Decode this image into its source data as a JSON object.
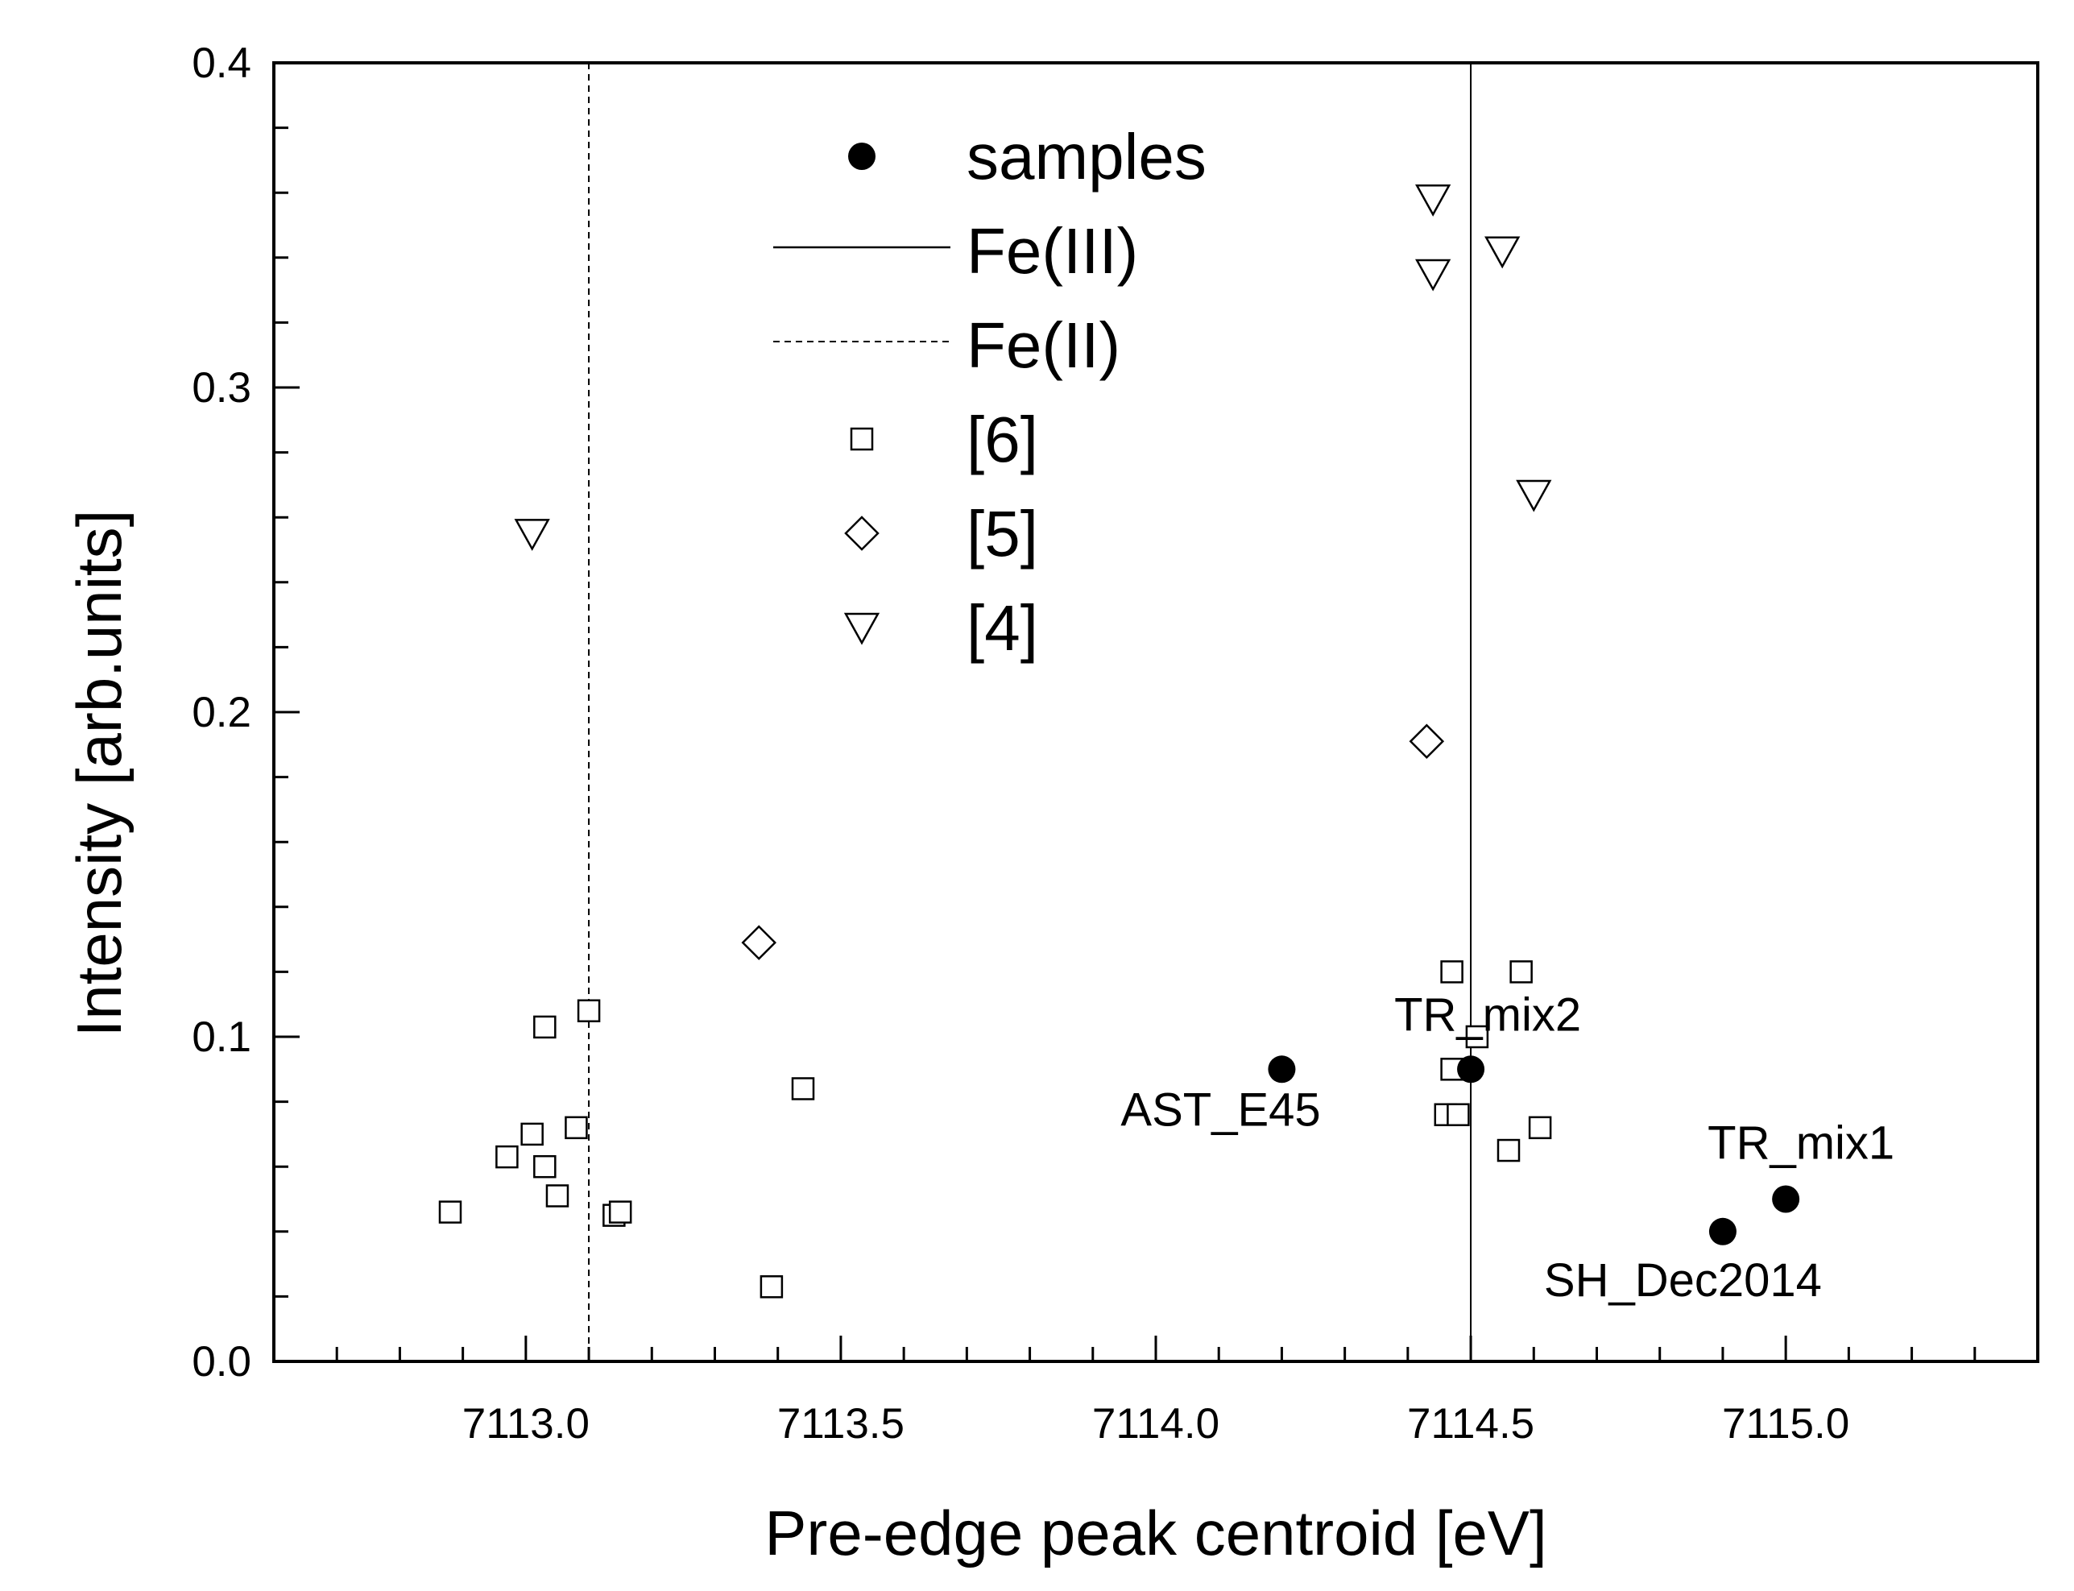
{
  "chart_data": {
    "type": "scatter",
    "title": "",
    "xlabel": "Pre-edge peak centroid [eV]",
    "ylabel": "Intensity [arb.units]",
    "xlim": [
      7112.6,
      7115.4
    ],
    "ylim": [
      0.0,
      0.4
    ],
    "x_ticks": [
      7113.0,
      7113.5,
      7114.0,
      7114.5,
      7115.0
    ],
    "x_tick_labels": [
      "7113.0",
      "7113.5",
      "7114.0",
      "7114.5",
      "7115.0"
    ],
    "y_ticks": [
      0.0,
      0.1,
      0.2,
      0.3,
      0.4
    ],
    "y_tick_labels": [
      "0.0",
      "0.1",
      "0.2",
      "0.3",
      "0.4"
    ],
    "grid": false,
    "legend_position": "top-center",
    "reference_lines": [
      {
        "name": "Fe(III)",
        "x": 7114.5,
        "style": "solid"
      },
      {
        "name": "Fe(II)",
        "x": 7113.1,
        "style": "dashed"
      }
    ],
    "series": [
      {
        "name": "samples",
        "marker": "filled-circle",
        "points": [
          {
            "x": 7114.2,
            "y": 0.09,
            "label": "AST_E45"
          },
          {
            "x": 7114.5,
            "y": 0.09,
            "label": "TR_mix2"
          },
          {
            "x": 7114.9,
            "y": 0.04,
            "label": "SH_Dec2014"
          },
          {
            "x": 7115.0,
            "y": 0.05,
            "label": "TR_mix1"
          }
        ]
      },
      {
        "name": "[6]",
        "marker": "open-square",
        "points": [
          {
            "x": 7112.88,
            "y": 0.046
          },
          {
            "x": 7112.97,
            "y": 0.063
          },
          {
            "x": 7113.01,
            "y": 0.07
          },
          {
            "x": 7113.03,
            "y": 0.103
          },
          {
            "x": 7113.03,
            "y": 0.06
          },
          {
            "x": 7113.05,
            "y": 0.051
          },
          {
            "x": 7113.08,
            "y": 0.072
          },
          {
            "x": 7113.1,
            "y": 0.108
          },
          {
            "x": 7113.14,
            "y": 0.045
          },
          {
            "x": 7113.15,
            "y": 0.046
          },
          {
            "x": 7113.39,
            "y": 0.023
          },
          {
            "x": 7113.44,
            "y": 0.084
          },
          {
            "x": 7114.46,
            "y": 0.076
          },
          {
            "x": 7114.47,
            "y": 0.09
          },
          {
            "x": 7114.47,
            "y": 0.12
          },
          {
            "x": 7114.48,
            "y": 0.076
          },
          {
            "x": 7114.51,
            "y": 0.1
          },
          {
            "x": 7114.56,
            "y": 0.065
          },
          {
            "x": 7114.58,
            "y": 0.12
          },
          {
            "x": 7114.61,
            "y": 0.072
          }
        ]
      },
      {
        "name": "[5]",
        "marker": "open-diamond",
        "points": [
          {
            "x": 7113.37,
            "y": 0.129
          },
          {
            "x": 7114.43,
            "y": 0.191
          }
        ]
      },
      {
        "name": "[4]",
        "marker": "open-triangle-down",
        "points": [
          {
            "x": 7113.01,
            "y": 0.255
          },
          {
            "x": 7114.44,
            "y": 0.358
          },
          {
            "x": 7114.44,
            "y": 0.335
          },
          {
            "x": 7114.55,
            "y": 0.342
          },
          {
            "x": 7114.6,
            "y": 0.267
          }
        ]
      }
    ]
  }
}
